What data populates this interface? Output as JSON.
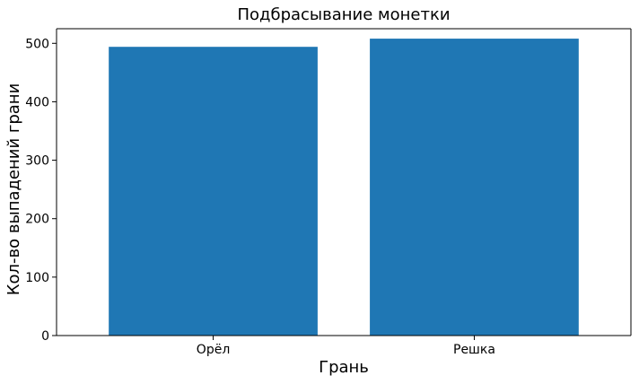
{
  "chart_data": {
    "type": "bar",
    "title": "Подбрасывание монетки",
    "xlabel": "Грань",
    "ylabel": "Кол-во выпадений грани",
    "categories": [
      "Орёл",
      "Решка"
    ],
    "values": [
      494,
      508
    ],
    "ylim": [
      0,
      525
    ],
    "yticks": [
      0,
      100,
      200,
      300,
      400,
      500
    ],
    "grid": false,
    "legend": "none",
    "bar_color": "#1f77b4"
  }
}
